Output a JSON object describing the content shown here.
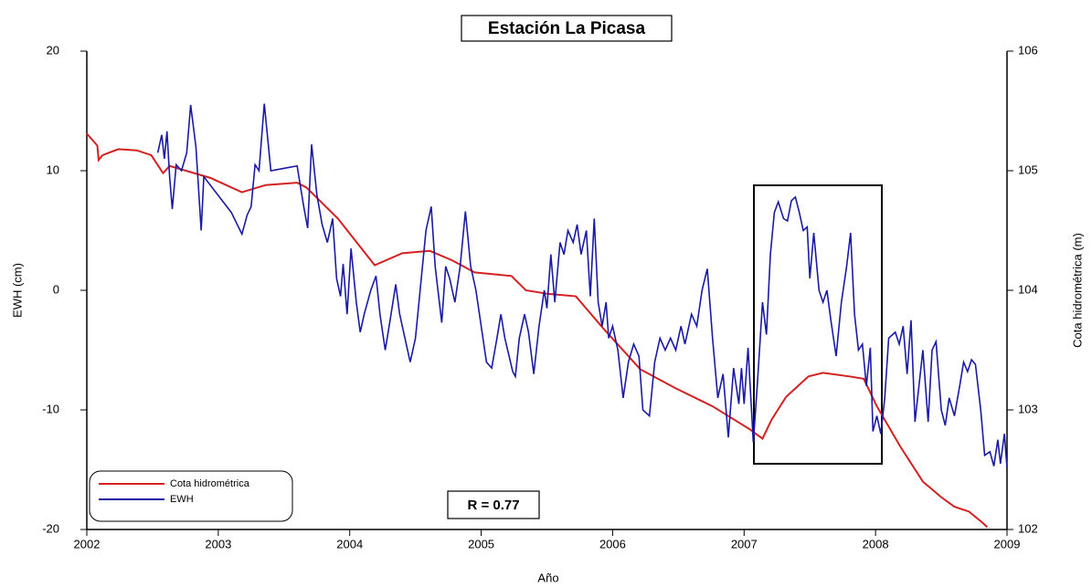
{
  "chart_data": {
    "type": "line",
    "title": "Estación La Picasa",
    "xlabel": "Año",
    "ylabel": "EWH (cm)",
    "y2label": "Cota hidrométrica (m)",
    "annotation": "R = 0.77",
    "xlim": [
      2002,
      2009
    ],
    "xticks": [
      2002,
      2003,
      2004,
      2005,
      2006,
      2007,
      2008,
      2009
    ],
    "ylim": [
      -20,
      20
    ],
    "yticks": [
      -20,
      -10,
      0,
      10,
      20
    ],
    "y2lim": [
      102,
      106
    ],
    "y2ticks": [
      102,
      103,
      104,
      105,
      106
    ],
    "legend": "lower left",
    "series": [
      {
        "name": "Cota hidrométrica",
        "color": "#d42020",
        "axis": "y2",
        "x": [
          2002.0,
          2002.08,
          2002.09,
          2002.12,
          2002.24,
          2002.38,
          2002.49,
          2002.58,
          2002.63,
          2002.94,
          2003.18,
          2003.36,
          2003.6,
          2003.67,
          2003.91,
          2004.19,
          2004.4,
          2004.61,
          2004.78,
          2004.95,
          2005.23,
          2005.34,
          2005.51,
          2005.72,
          2005.93,
          2006.21,
          2006.48,
          2006.76,
          2007.04,
          2007.14,
          2007.21,
          2007.32,
          2007.49,
          2007.6,
          2007.8,
          2007.91,
          2008.01,
          2008.19,
          2008.29,
          2008.36,
          2008.5,
          2008.6,
          2008.71,
          2008.81,
          2008.85
        ],
        "values": [
          105.31,
          105.21,
          105.09,
          105.13,
          105.18,
          105.17,
          105.13,
          104.98,
          105.04,
          104.94,
          104.82,
          104.88,
          104.9,
          104.86,
          104.6,
          104.21,
          104.31,
          104.33,
          104.25,
          104.15,
          104.12,
          104.0,
          103.97,
          103.95,
          103.68,
          103.34,
          103.18,
          103.03,
          102.84,
          102.76,
          102.92,
          103.11,
          103.28,
          103.31,
          103.28,
          103.26,
          103.03,
          102.69,
          102.52,
          102.4,
          102.27,
          102.19,
          102.15,
          102.06,
          102.02
        ]
      },
      {
        "name": "EWH",
        "color": "#1a1aa6",
        "x": [
          2002.54,
          2002.57,
          2002.59,
          2002.61,
          2002.63,
          2002.65,
          2002.68,
          2002.72,
          2002.76,
          2002.79,
          2002.83,
          2002.87,
          2002.89,
          2003.1,
          2003.18,
          2003.22,
          2003.25,
          2003.28,
          2003.31,
          2003.35,
          2003.4,
          2003.55,
          2003.6,
          2003.65,
          2003.68,
          2003.71,
          2003.75,
          2003.79,
          2003.83,
          2003.87,
          2003.9,
          2003.93,
          2003.95,
          2003.98,
          2004.01,
          2004.05,
          2004.08,
          2004.11,
          2004.16,
          2004.2,
          2004.23,
          2004.27,
          2004.3,
          2004.35,
          2004.38,
          2004.42,
          2004.46,
          2004.5,
          2004.54,
          2004.58,
          2004.62,
          2004.65,
          2004.7,
          2004.73,
          2004.76,
          2004.8,
          2004.84,
          2004.88,
          2004.92,
          2004.96,
          2005.0,
          2005.04,
          2005.08,
          2005.12,
          2005.15,
          2005.18,
          2005.24,
          2005.26,
          2005.29,
          2005.33,
          2005.36,
          2005.4,
          2005.44,
          2005.48,
          2005.5,
          2005.53,
          2005.56,
          2005.6,
          2005.63,
          2005.66,
          2005.7,
          2005.73,
          2005.76,
          2005.8,
          2005.83,
          2005.86,
          2005.89,
          2005.92,
          2005.95,
          2005.97,
          2006.0,
          2006.04,
          2006.08,
          2006.12,
          2006.16,
          2006.2,
          2006.23,
          2006.28,
          2006.32,
          2006.36,
          2006.4,
          2006.44,
          2006.48,
          2006.52,
          2006.55,
          2006.6,
          2006.64,
          2006.68,
          2006.72,
          2006.76,
          2006.8,
          2006.84,
          2006.88,
          2006.92,
          2006.96,
          2006.98,
          2007.0,
          2007.03,
          2007.07,
          2007.1,
          2007.14,
          2007.17,
          2007.2,
          2007.23,
          2007.26,
          2007.3,
          2007.33,
          2007.36,
          2007.39,
          2007.42,
          2007.45,
          2007.48,
          2007.5,
          2007.53,
          2007.57,
          2007.6,
          2007.63,
          2007.66,
          2007.7,
          2007.74,
          2007.78,
          2007.81,
          2007.84,
          2007.87,
          2007.9,
          2007.93,
          2007.96,
          2007.98,
          2008.01,
          2008.04,
          2008.07,
          2008.1,
          2008.15,
          2008.18,
          2008.21,
          2008.24,
          2008.27,
          2008.3,
          2008.33,
          2008.36,
          2008.4,
          2008.43,
          2008.46,
          2008.5,
          2008.53,
          2008.56,
          2008.6,
          2008.64,
          2008.67,
          2008.7,
          2008.73,
          2008.76,
          2008.8,
          2008.83,
          2008.87,
          2008.9,
          2008.93,
          2008.95,
          2008.98,
          2009.0
        ],
        "values": [
          11.5,
          13,
          11,
          13.3,
          9.5,
          6.8,
          10.5,
          10,
          11.5,
          15.5,
          12,
          5,
          9.5,
          6.5,
          4.7,
          6.3,
          7,
          10.5,
          10,
          15.6,
          10,
          10.3,
          10.4,
          7,
          5.2,
          12.2,
          8,
          5.5,
          4,
          6,
          1,
          -0.5,
          2.2,
          -2,
          3.5,
          -1,
          -3.5,
          -2,
          0,
          1.2,
          -2,
          -5,
          -3,
          0.5,
          -2,
          -4,
          -6,
          -4,
          0.5,
          5,
          7,
          2,
          -2.7,
          2,
          1,
          -1,
          2,
          6.6,
          2,
          0,
          -3,
          -6,
          -6.5,
          -4,
          -2,
          -4,
          -6.8,
          -7.2,
          -4,
          -2,
          -3.5,
          -7,
          -3,
          0,
          -1.5,
          3,
          -1,
          4,
          3,
          5,
          4,
          5.5,
          3,
          5,
          -0.5,
          6,
          -1,
          -3,
          -1,
          -4,
          -3,
          -5,
          -9,
          -6,
          -4.5,
          -5.5,
          -10,
          -10.5,
          -6,
          -4,
          -5,
          -4,
          -5,
          -3,
          -4.5,
          -2,
          -3,
          0,
          1.8,
          -4,
          -9,
          -7,
          -12.3,
          -6.5,
          -9.5,
          -6.5,
          -9.5,
          -4.8,
          -12.7,
          -8,
          -1,
          -3.7,
          3,
          6.5,
          7.4,
          6,
          5.8,
          7.5,
          7.8,
          6.5,
          5,
          5.3,
          1,
          4.8,
          0,
          -1,
          0,
          -2.5,
          -5.5,
          -1,
          2,
          4.8,
          -2,
          -5,
          -4.5,
          -8,
          -4.8,
          -11.8,
          -10.5,
          -12,
          -9,
          -4,
          -3.5,
          -4.5,
          -3,
          -7,
          -2.5,
          -11,
          -8,
          -5,
          -11,
          -5,
          -4.3,
          -10,
          -11.3,
          -9,
          -10.5,
          -8,
          -6,
          -6.8,
          -5.8,
          -6.2,
          -10,
          -13.8,
          -13.5,
          -14.7,
          -12.5,
          -14.5,
          -12,
          -14.8
        ]
      }
    ]
  }
}
